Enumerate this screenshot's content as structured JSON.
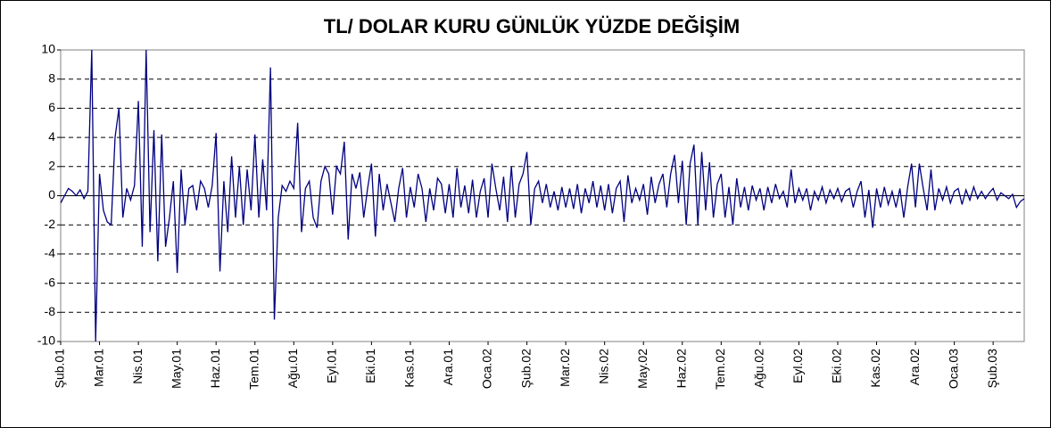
{
  "chart_data": {
    "type": "line",
    "title": "TL/ DOLAR KURU GÜNLÜK YÜZDE DEĞİŞİM",
    "series": [
      {
        "name": "TL/ DOLAR",
        "color": "#000080",
        "values": [
          -0.5,
          0,
          0.5,
          0.3,
          0,
          0.4,
          -0.2,
          0.3,
          10,
          -10,
          1.5,
          -1,
          -1.8,
          -2,
          4,
          6,
          -1.5,
          0.5,
          -0.3,
          0.7,
          6.5,
          -3.5,
          10,
          -2.5,
          4.5,
          -4.5,
          4.2,
          -3.5,
          -1.5,
          1,
          -5.3,
          1.8,
          -2,
          0.5,
          0.7,
          -1,
          1,
          0.5,
          -0.8,
          0.7,
          4.3,
          -5.2,
          1,
          -2.5,
          2.7,
          -1.5,
          2,
          -2,
          1.8,
          -1,
          4.2,
          -1.5,
          2.5,
          -1,
          8.8,
          -8.5,
          -1.5,
          0.7,
          0.3,
          1,
          0.5,
          5,
          -2.5,
          0.5,
          1,
          -1.5,
          -2.2,
          1,
          2,
          1.5,
          -1.3,
          2,
          1.5,
          3.7,
          -3,
          1.5,
          0.5,
          1.6,
          -1.5,
          0.5,
          2.2,
          -2.8,
          1.5,
          -1,
          0.8,
          -0.5,
          -1.8,
          0.5,
          1.9,
          -1.5,
          0.6,
          -0.8,
          1.5,
          0.5,
          -1.8,
          0.5,
          -1,
          1.2,
          0.8,
          -1.2,
          0.8,
          -1.5,
          1.9,
          -0.8,
          0.7,
          -1.2,
          1.1,
          -1.5,
          0.3,
          1.2,
          -1.5,
          2.2,
          0.5,
          -1,
          1.3,
          -1.8,
          2,
          -1.5,
          0.8,
          1.5,
          3,
          -2,
          0.5,
          1,
          -0.5,
          0.8,
          -0.8,
          0.3,
          -1,
          0.6,
          -0.8,
          0.5,
          -0.9,
          0.8,
          -1.2,
          0.5,
          -0.5,
          1,
          -0.8,
          0.7,
          -1,
          0.8,
          -1.2,
          0.5,
          1,
          -1.8,
          1.4,
          -0.5,
          0.5,
          -0.3,
          0.8,
          -1.3,
          1.3,
          -0.5,
          0.8,
          1.5,
          -0.8,
          1.5,
          2.8,
          -0.5,
          2.4,
          -2,
          2.2,
          3.5,
          -2,
          3,
          -1,
          2.3,
          -1.5,
          0.8,
          1.5,
          -1.5,
          0.6,
          -2,
          1.2,
          -0.8,
          0.6,
          -1,
          0.7,
          -0.3,
          0.5,
          -1,
          0.6,
          -0.5,
          0.8,
          -0.2,
          0.3,
          -0.8,
          1.8,
          -0.5,
          0.5,
          -0.3,
          0.5,
          -1,
          0.3,
          -0.3,
          0.6,
          -0.5,
          0.4,
          -0.2,
          0.5,
          -0.4,
          0.3,
          0.5,
          -0.8,
          0.3,
          1,
          -1.5,
          0.4,
          -2.2,
          0.5,
          -0.8,
          0.6,
          -0.6,
          0.3,
          -0.8,
          0.5,
          -1.5,
          0.6,
          2.2,
          -0.8,
          2.2,
          0.5,
          -1,
          1.8,
          -1,
          0.5,
          -0.3,
          0.6,
          -0.5,
          0.3,
          0.5,
          -0.6,
          0.4,
          -0.3,
          0.6,
          -0.2,
          0.3,
          -0.2,
          0.2,
          0.5,
          -0.3,
          0.2,
          0,
          -0.2,
          0.1,
          -0.8,
          -0.4,
          -0.2
        ]
      }
    ],
    "xlim": [
      0,
      248
    ],
    "xticks": [
      {
        "value": 0,
        "label": "Şub.01"
      },
      {
        "value": 10,
        "label": "Mar.01"
      },
      {
        "value": 20,
        "label": "Nis.01"
      },
      {
        "value": 30,
        "label": "May.01"
      },
      {
        "value": 40,
        "label": "Haz.01"
      },
      {
        "value": 50,
        "label": "Tem.01"
      },
      {
        "value": 60,
        "label": "Ağu.01"
      },
      {
        "value": 70,
        "label": "Eyl.01"
      },
      {
        "value": 80,
        "label": "Eki.01"
      },
      {
        "value": 90,
        "label": "Kas.01"
      },
      {
        "value": 100,
        "label": "Ara.01"
      },
      {
        "value": 110,
        "label": "Oca.02"
      },
      {
        "value": 120,
        "label": "Şub.02"
      },
      {
        "value": 130,
        "label": "Mar.02"
      },
      {
        "value": 140,
        "label": "Nis.02"
      },
      {
        "value": 150,
        "label": "May.02"
      },
      {
        "value": 160,
        "label": "Haz.02"
      },
      {
        "value": 170,
        "label": "Tem.02"
      },
      {
        "value": 180,
        "label": "Ağu.02"
      },
      {
        "value": 190,
        "label": "Eyl.02"
      },
      {
        "value": 200,
        "label": "Eki.02"
      },
      {
        "value": 210,
        "label": "Kas.02"
      },
      {
        "value": 220,
        "label": "Ara.02"
      },
      {
        "value": 230,
        "label": "Oca.03"
      },
      {
        "value": 240,
        "label": "Şub.03"
      }
    ],
    "ylim": [
      -10,
      10
    ],
    "yticks": [
      -10,
      -8,
      -6,
      -4,
      -2,
      0,
      2,
      4,
      6,
      8,
      10
    ],
    "grid": true
  }
}
